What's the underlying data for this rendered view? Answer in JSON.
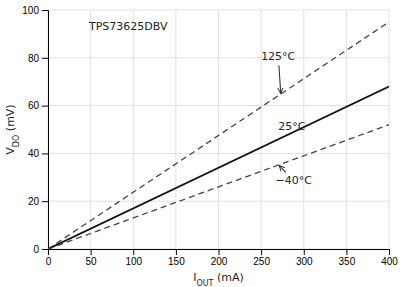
{
  "chart_data": {
    "type": "line",
    "title": "TPS73625DBV",
    "xlabel": {
      "text": "I",
      "sub": "OUT",
      "unit": " (mA)"
    },
    "ylabel": {
      "text": "V",
      "sub": "DO",
      "unit": " (mV)"
    },
    "x": [
      0,
      400
    ],
    "series": [
      {
        "color": "#444444",
        "line_style": "dashed",
        "values": [
          0,
          95
        ]
      },
      {
        "color": "#111111",
        "line_style": "solid",
        "values": [
          0,
          68
        ]
      },
      {
        "color": "#444444",
        "line_style": "dashed",
        "values": [
          0,
          52
        ]
      }
    ],
    "xlim": [
      0,
      400
    ],
    "ylim": [
      0,
      100
    ],
    "xticks": [
      0,
      50,
      100,
      150,
      200,
      250,
      300,
      350,
      400
    ],
    "yticks": [
      0,
      20,
      40,
      60,
      80,
      100
    ],
    "grid": true,
    "annotations": [
      {
        "text": "125°C",
        "x": 250,
        "y": 79,
        "arrow_x": 273,
        "arrow_y": 65
      },
      {
        "text": "25°C",
        "x": 270,
        "y": 50
      },
      {
        "text": "−40°C",
        "x": 267,
        "y": 27,
        "arrow_x": 271,
        "arrow_y": 35
      }
    ]
  }
}
